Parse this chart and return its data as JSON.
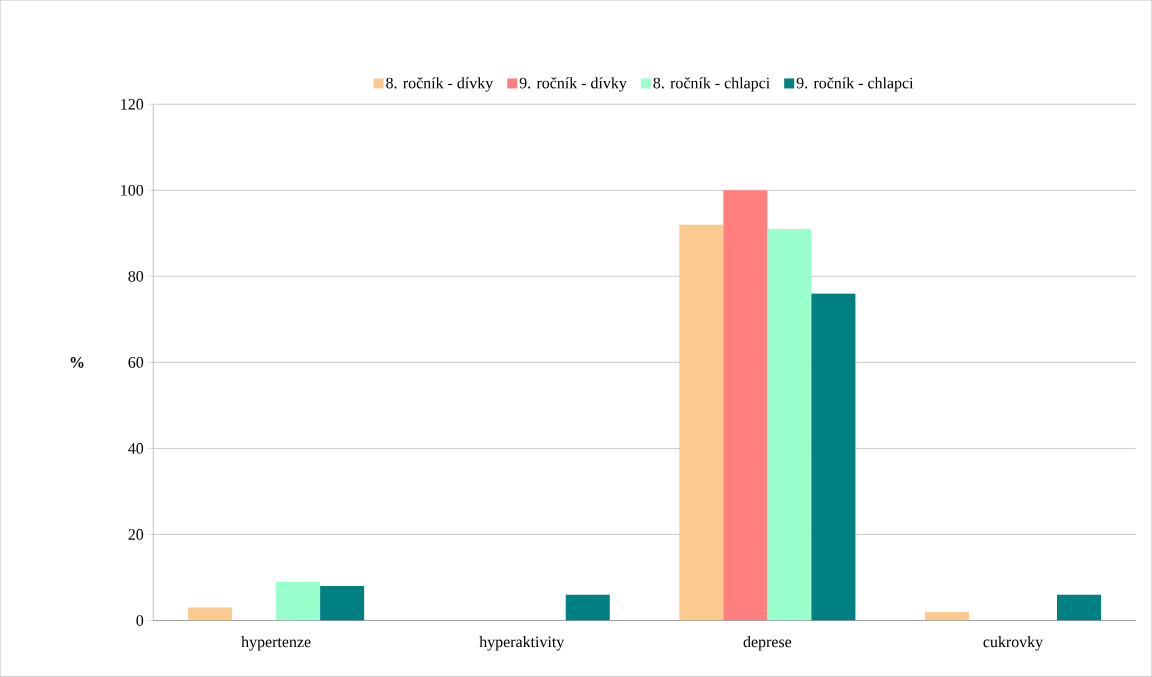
{
  "chart_data": {
    "type": "bar",
    "ylabel": "%",
    "categories": [
      "hypertenze",
      "hyperaktivity",
      "deprese",
      "cukrovky"
    ],
    "series": [
      {
        "name": "8. ročník - dívky",
        "color": "#fcc991",
        "values": [
          3,
          0,
          92,
          2
        ]
      },
      {
        "name": "9. ročník - dívky",
        "color": "#ff7f7f",
        "values": [
          0,
          0,
          100,
          0
        ]
      },
      {
        "name": "8. ročník - chlapci",
        "color": "#99ffcc",
        "values": [
          9,
          0,
          91,
          0
        ]
      },
      {
        "name": "9. ročník - chlapci",
        "color": "#008080",
        "values": [
          8,
          6,
          76,
          6
        ]
      }
    ],
    "ylim": [
      0,
      120
    ],
    "yticks": [
      0,
      20,
      40,
      60,
      80,
      100,
      120
    ],
    "grid": "y",
    "legend": "top"
  }
}
